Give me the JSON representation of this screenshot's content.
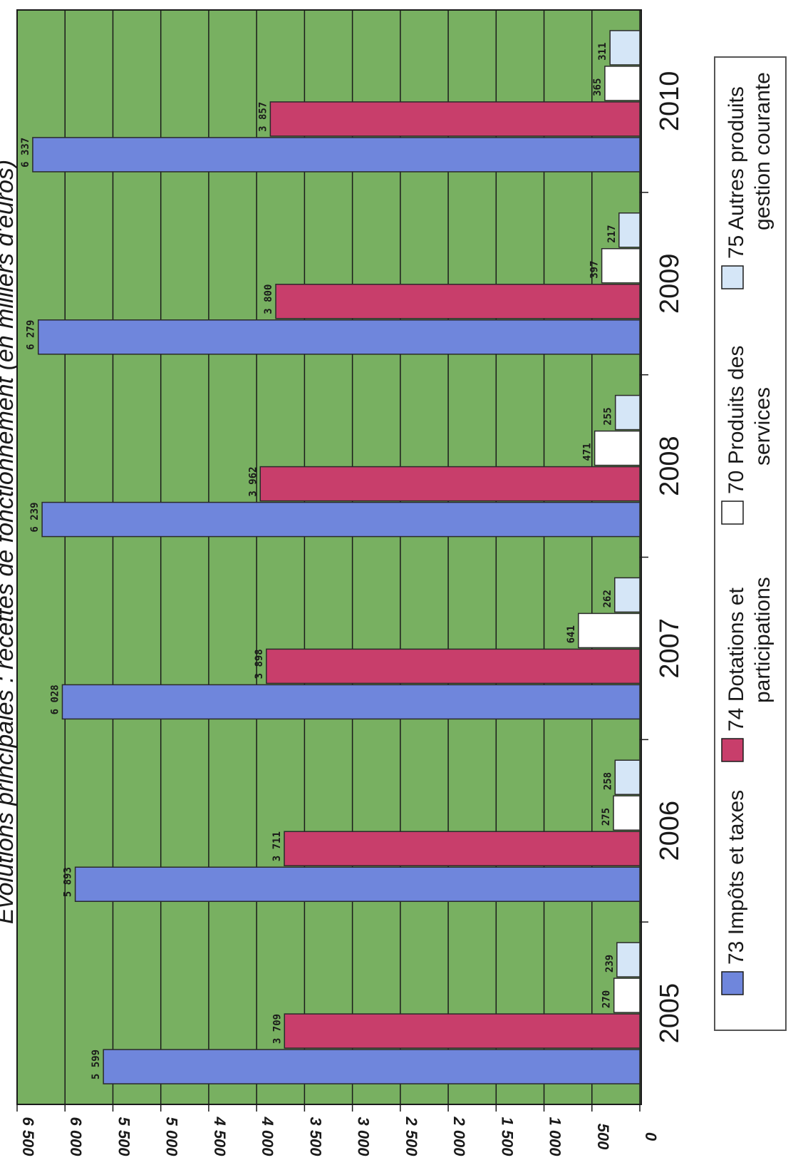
{
  "chart_data": {
    "type": "bar",
    "title": "Évolutions principales : recettes de fonctionnement (en milliers d'euros)",
    "categories": [
      "2005",
      "2006",
      "2007",
      "2008",
      "2009",
      "2010"
    ],
    "series": [
      {
        "name": "73 Impôts et taxes",
        "color": "#6f86dc",
        "values": [
          5599,
          5893,
          6028,
          6239,
          6279,
          6337
        ],
        "labels": [
          "5 599",
          "5 893",
          "6 028",
          "6 239",
          "6 279",
          "6 337"
        ]
      },
      {
        "name": "74 Dotations et participations",
        "color": "#c83e6b",
        "values": [
          3709,
          3711,
          3898,
          3962,
          3800,
          3857
        ],
        "labels": [
          "3 709",
          "3 711",
          "3 898",
          "3 962",
          "3 800",
          "3 857"
        ]
      },
      {
        "name": "70 Produits des services",
        "color": "#ffffff",
        "values": [
          270,
          275,
          641,
          471,
          397,
          365
        ],
        "labels": [
          "270",
          "275",
          "641",
          "471",
          "397",
          "365"
        ]
      },
      {
        "name": "75 Autres produits gestion courante",
        "color": "#d5e6f7",
        "values": [
          239,
          258,
          262,
          255,
          217,
          311
        ],
        "labels": [
          "239",
          "258",
          "262",
          "255",
          "217",
          "311"
        ]
      }
    ],
    "yticks": [
      "0",
      "500",
      "1 000",
      "1 500",
      "2 000",
      "2 500",
      "3 000",
      "3 500",
      "4 000",
      "4 500",
      "5 000",
      "5 500",
      "6 000",
      "6 500"
    ],
    "ylim": [
      0,
      6500
    ],
    "grid": true,
    "plot_background": "#78b061",
    "legend_position": "bottom",
    "xlabel": "",
    "ylabel": ""
  }
}
